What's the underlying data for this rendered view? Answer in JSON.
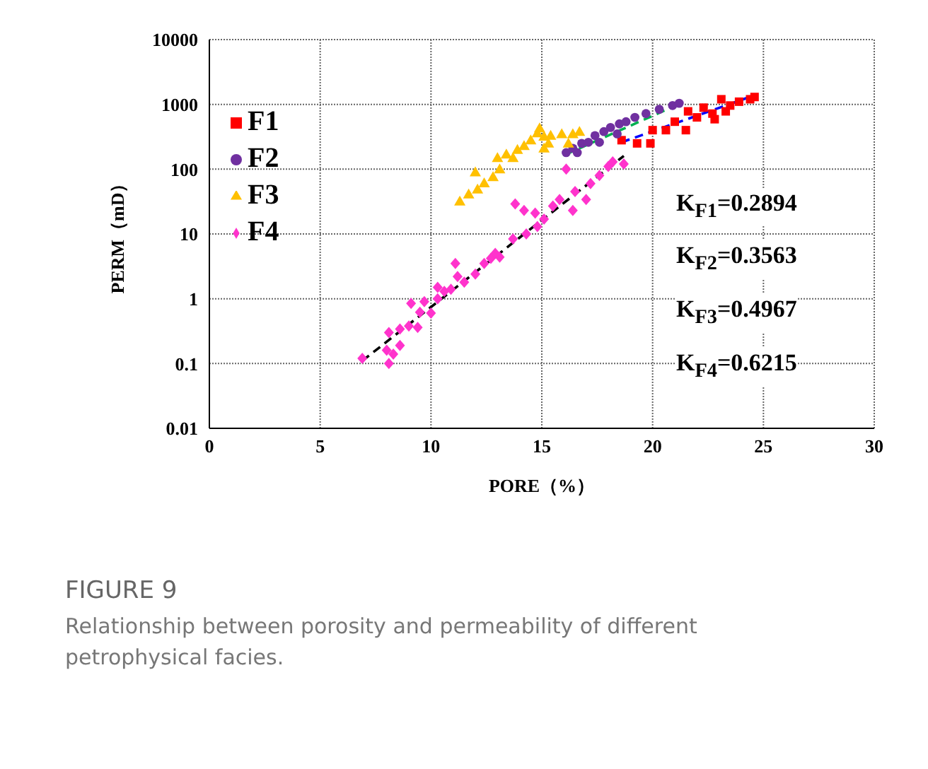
{
  "chart_data": {
    "type": "scatter",
    "title": "FIGURE 9",
    "subtitle": "Relationship between porosity and permeability of different petrophysical facies.",
    "xlabel": "PORE（%）",
    "ylabel": "PERM（mD）",
    "log": "y",
    "xlim": [
      0,
      30
    ],
    "xticks": [
      0,
      5,
      10,
      15,
      20,
      25,
      30
    ],
    "ylim": [
      0.01,
      10000
    ],
    "yticks": [
      0.01,
      0.1,
      1,
      10,
      100,
      1000,
      10000
    ],
    "grid": true,
    "legend": "top left",
    "annotations": [
      "K$_{F1}$=0.2894",
      "K$_{F2}$=0.3563",
      "K$_{F3}$=0.4967",
      "K$_{F4}$=0.6215"
    ],
    "series": [
      {
        "name": "F1",
        "color": "#ff0000",
        "marker": "square",
        "x": [
          18.6,
          19.3,
          19.9,
          20.0,
          20.6,
          21.0,
          21.5,
          21.6,
          22.0,
          22.3,
          22.7,
          22.8,
          23.1,
          23.3,
          23.5,
          23.9,
          24.4,
          24.6
        ],
        "values": [
          280,
          250,
          250,
          400,
          400,
          540,
          400,
          780,
          630,
          890,
          720,
          590,
          1200,
          780,
          960,
          1100,
          1200,
          1300
        ]
      },
      {
        "name": "F2",
        "color": "#7030a0",
        "marker": "circle",
        "x": [
          16.1,
          16.4,
          16.6,
          16.8,
          17.1,
          17.4,
          17.6,
          17.8,
          18.1,
          18.4,
          18.5,
          18.8,
          19.2,
          19.7,
          20.3,
          20.9,
          21.2
        ],
        "values": [
          180,
          210,
          180,
          250,
          260,
          330,
          260,
          380,
          440,
          350,
          500,
          540,
          630,
          720,
          840,
          960,
          1040
        ]
      },
      {
        "name": "F3",
        "color": "#ffc000",
        "marker": "triangle",
        "x": [
          11.3,
          11.7,
          12.0,
          12.1,
          12.4,
          12.8,
          13.0,
          13.1,
          13.4,
          13.7,
          13.9,
          14.2,
          14.5,
          14.8,
          14.9,
          15.1,
          15.1,
          15.3,
          15.4,
          15.9,
          16.2,
          16.4,
          16.7
        ],
        "values": [
          32,
          41,
          90,
          49,
          61,
          76,
          150,
          100,
          170,
          150,
          200,
          230,
          280,
          360,
          430,
          320,
          210,
          250,
          330,
          350,
          250,
          350,
          380
        ]
      },
      {
        "name": "F4",
        "color": "#ff33cc",
        "marker": "diamond",
        "x": [
          6.9,
          8.0,
          8.1,
          8.1,
          8.3,
          8.6,
          8.6,
          9.0,
          9.1,
          9.4,
          9.5,
          9.7,
          10.0,
          10.3,
          10.3,
          10.6,
          10.9,
          11.1,
          11.2,
          11.5,
          12.0,
          12.4,
          12.7,
          12.9,
          13.1,
          13.7,
          13.8,
          14.2,
          14.3,
          14.7,
          14.8,
          15.1,
          15.5,
          15.8,
          16.1,
          16.4,
          16.5,
          17.0,
          17.2,
          17.6,
          18.0,
          18.2,
          18.7
        ],
        "values": [
          0.12,
          0.16,
          0.1,
          0.3,
          0.14,
          0.19,
          0.34,
          0.38,
          0.85,
          0.36,
          0.62,
          0.9,
          0.6,
          1,
          1.5,
          1.3,
          1.4,
          3.5,
          2.2,
          1.8,
          2.4,
          3.5,
          4.2,
          5,
          4.4,
          8.4,
          29,
          23,
          10,
          21,
          13,
          17,
          27,
          34,
          100,
          23,
          45,
          34,
          60,
          80,
          110,
          130,
          120
        ]
      },
      {
        "type": "line",
        "color": "#0000ff",
        "line_style": "dashed",
        "marker": "none",
        "x": [
          18.6,
          24.6
        ],
        "values": [
          260,
          1380
        ]
      },
      {
        "type": "line",
        "color": "#00b050",
        "line_style": "dashed",
        "marker": "none",
        "x": [
          16.1,
          21.3
        ],
        "values": [
          170,
          1050
        ]
      },
      {
        "type": "line",
        "color": "#000000",
        "line_style": "dashed",
        "marker": "none",
        "x": [
          6.9,
          18.7
        ],
        "values": [
          0.11,
          160
        ]
      }
    ]
  }
}
